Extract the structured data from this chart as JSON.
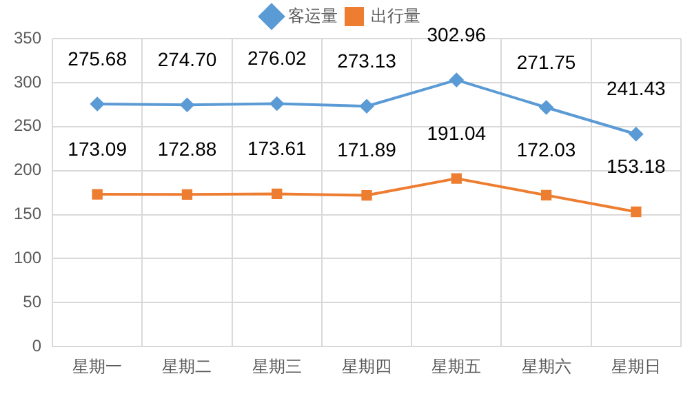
{
  "chart_data": {
    "type": "line",
    "categories": [
      "星期一",
      "星期二",
      "星期三",
      "星期四",
      "星期五",
      "星期六",
      "星期日"
    ],
    "series": [
      {
        "name": "客运量",
        "color": "#5b9bd5",
        "marker": "diamond",
        "values": [
          275.68,
          274.7,
          276.02,
          273.13,
          302.96,
          271.75,
          241.43
        ],
        "value_labels": [
          "275.68",
          "274.70",
          "276.02",
          "273.13",
          "302.96",
          "271.75",
          "241.43"
        ]
      },
      {
        "name": "出行量",
        "color": "#ed7d31",
        "marker": "square",
        "values": [
          173.09,
          172.88,
          173.61,
          171.89,
          191.04,
          172.03,
          153.18
        ],
        "value_labels": [
          "173.09",
          "172.88",
          "173.61",
          "171.89",
          "191.04",
          "172.03",
          "153.18"
        ]
      }
    ],
    "ylim": [
      0,
      350
    ],
    "yticks": [
      0,
      50,
      100,
      150,
      200,
      250,
      300,
      350
    ],
    "grid": true,
    "legend": "top",
    "line_style": "solid"
  }
}
